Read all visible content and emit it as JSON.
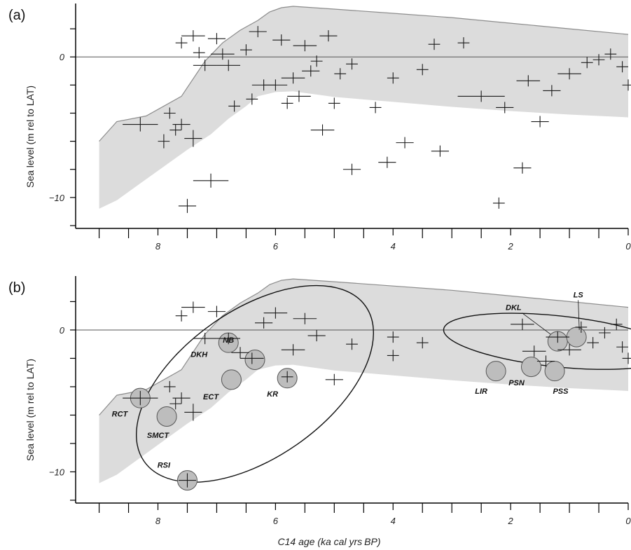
{
  "figure": {
    "panel_a_label": "(a)",
    "panel_b_label": "(b)",
    "xlabel_main": "C14 age (ka cal yrs",
    "xlabel_unit": "BP",
    "xlabel_close": ")",
    "ylabel": "Sea level (m rel to LAT)"
  },
  "colors": {
    "envelope": "#dcdcdc",
    "envelope_edge": "#8c8c8c",
    "marker": "#1a1a1a",
    "site_fill": "#bdbdbd"
  },
  "chart_data": [
    {
      "panel": "(a)",
      "type": "scatter",
      "xlabel": "",
      "ylabel": "Sea level (m rel to LAT)",
      "x_reversed": true,
      "xlim": [
        9.4,
        0
      ],
      "ylim": [
        -12.2,
        3.8
      ],
      "x_ticks": [
        8,
        6,
        4,
        2,
        0
      ],
      "x_tick_labels": [
        "8",
        "6",
        "4",
        "2",
        "0"
      ],
      "y_ticks": [
        0,
        -10
      ],
      "y_tick_labels": [
        "0",
        "−10"
      ],
      "envelope_upper": [
        [
          9.0,
          -6.0
        ],
        [
          8.7,
          -4.6
        ],
        [
          8.2,
          -4.2
        ],
        [
          7.6,
          -2.8
        ],
        [
          7.2,
          -0.3
        ],
        [
          6.9,
          1.0
        ],
        [
          6.6,
          1.9
        ],
        [
          6.3,
          2.6
        ],
        [
          6.1,
          3.2
        ],
        [
          5.9,
          3.5
        ],
        [
          5.7,
          3.6
        ],
        [
          5.0,
          3.4
        ],
        [
          4.0,
          3.1
        ],
        [
          3.0,
          2.8
        ],
        [
          2.0,
          2.4
        ],
        [
          1.0,
          2.0
        ],
        [
          0.0,
          1.6
        ]
      ],
      "envelope_lower": [
        [
          0.0,
          -4.3
        ],
        [
          1.0,
          -4.1
        ],
        [
          2.0,
          -3.85
        ],
        [
          3.0,
          -3.55
        ],
        [
          4.0,
          -3.2
        ],
        [
          5.0,
          -2.85
        ],
        [
          5.7,
          -2.45
        ],
        [
          6.0,
          -2.5
        ],
        [
          6.3,
          -2.8
        ],
        [
          6.5,
          -3.5
        ],
        [
          6.8,
          -4.4
        ],
        [
          7.1,
          -5.5
        ],
        [
          7.5,
          -6.6
        ],
        [
          7.9,
          -7.8
        ],
        [
          8.3,
          -9.0
        ],
        [
          8.7,
          -10.2
        ],
        [
          9.0,
          -10.8
        ]
      ],
      "zero_line": 0,
      "points": [
        [
          8.3,
          -4.8,
          0.3,
          0.5
        ],
        [
          7.9,
          -6.0,
          0.1,
          0.5
        ],
        [
          7.8,
          -4.0,
          0.1,
          0.4
        ],
        [
          7.7,
          -5.2,
          0.1,
          0.4
        ],
        [
          7.6,
          -4.8,
          0.15,
          0.4
        ],
        [
          7.5,
          -10.6,
          0.15,
          0.5
        ],
        [
          7.4,
          -5.8,
          0.15,
          0.6
        ],
        [
          7.1,
          -8.8,
          0.3,
          0.5
        ],
        [
          7.6,
          1.0,
          0.1,
          0.4
        ],
        [
          7.4,
          1.5,
          0.2,
          0.4
        ],
        [
          7.3,
          0.3,
          0.1,
          0.4
        ],
        [
          7.2,
          -0.6,
          0.2,
          0.4
        ],
        [
          7.0,
          1.3,
          0.15,
          0.4
        ],
        [
          6.9,
          0.2,
          0.2,
          0.4
        ],
        [
          6.8,
          -0.6,
          0.2,
          0.4
        ],
        [
          6.7,
          -3.5,
          0.1,
          0.4
        ],
        [
          6.5,
          0.5,
          0.1,
          0.4
        ],
        [
          6.4,
          -3.0,
          0.1,
          0.4
        ],
        [
          6.3,
          1.8,
          0.15,
          0.4
        ],
        [
          6.2,
          -2.0,
          0.2,
          0.4
        ],
        [
          6.0,
          -2.0,
          0.2,
          0.4
        ],
        [
          5.9,
          1.2,
          0.15,
          0.4
        ],
        [
          5.8,
          -3.3,
          0.1,
          0.4
        ],
        [
          5.7,
          -1.5,
          0.2,
          0.4
        ],
        [
          5.6,
          -2.8,
          0.2,
          0.4
        ],
        [
          5.5,
          0.8,
          0.2,
          0.4
        ],
        [
          5.4,
          -1.0,
          0.15,
          0.4
        ],
        [
          5.3,
          -0.3,
          0.1,
          0.4
        ],
        [
          5.2,
          -5.2,
          0.2,
          0.4
        ],
        [
          5.1,
          1.5,
          0.15,
          0.4
        ],
        [
          5.0,
          -3.3,
          0.1,
          0.4
        ],
        [
          4.9,
          -1.2,
          0.1,
          0.4
        ],
        [
          4.7,
          -8.0,
          0.15,
          0.4
        ],
        [
          4.7,
          -0.5,
          0.1,
          0.4
        ],
        [
          4.3,
          -3.6,
          0.1,
          0.4
        ],
        [
          4.1,
          -7.5,
          0.15,
          0.4
        ],
        [
          4.0,
          -1.5,
          0.1,
          0.4
        ],
        [
          3.8,
          -6.1,
          0.15,
          0.4
        ],
        [
          3.5,
          -0.9,
          0.1,
          0.4
        ],
        [
          3.3,
          0.9,
          0.1,
          0.4
        ],
        [
          3.2,
          -6.7,
          0.15,
          0.4
        ],
        [
          2.8,
          1.0,
          0.1,
          0.4
        ],
        [
          2.5,
          -2.8,
          0.4,
          0.4
        ],
        [
          2.2,
          -10.4,
          0.1,
          0.4
        ],
        [
          2.1,
          -3.6,
          0.15,
          0.4
        ],
        [
          1.8,
          -7.9,
          0.15,
          0.4
        ],
        [
          1.5,
          -4.6,
          0.15,
          0.4
        ],
        [
          1.7,
          -1.7,
          0.2,
          0.4
        ],
        [
          1.3,
          -2.4,
          0.15,
          0.4
        ],
        [
          1.0,
          -1.2,
          0.2,
          0.4
        ],
        [
          0.7,
          -0.4,
          0.1,
          0.4
        ],
        [
          0.5,
          -0.2,
          0.1,
          0.4
        ],
        [
          0.3,
          0.2,
          0.1,
          0.4
        ],
        [
          0.1,
          -0.7,
          0.1,
          0.4
        ],
        [
          0.0,
          -2.0,
          0.1,
          0.4
        ]
      ],
      "extra_points_note": ""
    },
    {
      "panel": "(b)",
      "type": "scatter",
      "xlabel": "C14 age (ka cal yrs BP)",
      "ylabel": "Sea level (m rel to LAT)",
      "x_reversed": true,
      "xlim": [
        9.4,
        0
      ],
      "ylim": [
        -12.2,
        3.8
      ],
      "x_ticks": [
        8,
        6,
        4,
        2,
        0
      ],
      "x_tick_labels": [
        "8",
        "6",
        "4",
        "2",
        "0"
      ],
      "y_ticks": [
        0,
        -10
      ],
      "y_tick_labels": [
        "0",
        "−10"
      ],
      "zero_line": 0,
      "points": [
        [
          8.3,
          -4.8,
          0.3,
          0.5
        ],
        [
          7.8,
          -4.0,
          0.1,
          0.4
        ],
        [
          7.7,
          -5.2,
          0.1,
          0.4
        ],
        [
          7.6,
          -4.8,
          0.15,
          0.4
        ],
        [
          7.5,
          -10.6,
          0.15,
          0.5
        ],
        [
          7.4,
          -5.8,
          0.15,
          0.6
        ],
        [
          7.6,
          1.0,
          0.1,
          0.4
        ],
        [
          7.4,
          1.6,
          0.2,
          0.4
        ],
        [
          7.2,
          -0.6,
          0.2,
          0.4
        ],
        [
          7.0,
          1.3,
          0.15,
          0.4
        ],
        [
          6.8,
          -0.6,
          0.2,
          0.4
        ],
        [
          6.6,
          -1.6,
          0.15,
          0.4
        ],
        [
          6.4,
          -2.0,
          0.2,
          0.4
        ],
        [
          6.2,
          0.5,
          0.15,
          0.4
        ],
        [
          6.0,
          1.2,
          0.2,
          0.4
        ],
        [
          5.8,
          -3.3,
          0.1,
          0.4
        ],
        [
          5.7,
          -1.4,
          0.2,
          0.4
        ],
        [
          5.5,
          0.8,
          0.2,
          0.4
        ],
        [
          5.3,
          -0.4,
          0.15,
          0.4
        ],
        [
          5.0,
          -3.5,
          0.15,
          0.4
        ],
        [
          4.7,
          -1.0,
          0.1,
          0.4
        ],
        [
          4.0,
          -0.5,
          0.1,
          0.4
        ],
        [
          4.0,
          -1.8,
          0.1,
          0.4
        ],
        [
          3.5,
          -0.9,
          0.1,
          0.4
        ],
        [
          1.8,
          0.4,
          0.2,
          0.4
        ],
        [
          1.6,
          -1.5,
          0.2,
          0.4
        ],
        [
          1.4,
          -2.2,
          0.15,
          0.4
        ],
        [
          1.2,
          -0.5,
          0.2,
          0.4
        ],
        [
          1.0,
          -1.4,
          0.2,
          0.4
        ],
        [
          0.8,
          0.2,
          0.1,
          0.4
        ],
        [
          0.6,
          -0.9,
          0.1,
          0.4
        ],
        [
          0.4,
          -0.2,
          0.1,
          0.4
        ],
        [
          0.2,
          0.4,
          0.1,
          0.4
        ],
        [
          0.1,
          -1.2,
          0.1,
          0.4
        ],
        [
          0.0,
          -2.0,
          0.1,
          0.4
        ]
      ],
      "sites": [
        {
          "name": "RCT",
          "x": 8.3,
          "y": -4.8,
          "label_x": 8.65,
          "label_y": -6.1
        },
        {
          "name": "SMCT",
          "x": 7.85,
          "y": -6.1,
          "label_x": 8.0,
          "label_y": -7.6
        },
        {
          "name": "RSI",
          "x": 7.5,
          "y": -10.6,
          "label_x": 7.9,
          "label_y": -9.7
        },
        {
          "name": "DKH",
          "x": 6.8,
          "y": -0.9,
          "label_x": 7.3,
          "label_y": -1.9
        },
        {
          "name": "ECT",
          "x": 6.75,
          "y": -3.5,
          "label_x": 7.1,
          "label_y": -4.9
        },
        {
          "name": "NB",
          "x": 6.35,
          "y": -2.1,
          "label_x": 6.8,
          "label_y": -0.9
        },
        {
          "name": "KR",
          "x": 5.8,
          "y": -3.4,
          "label_x": 6.05,
          "label_y": -4.7
        },
        {
          "name": "LIR",
          "x": 2.25,
          "y": -2.9,
          "label_x": 2.5,
          "label_y": -4.5
        },
        {
          "name": "PSN",
          "x": 1.65,
          "y": -2.6,
          "label_x": 1.9,
          "label_y": -3.9
        },
        {
          "name": "PSS",
          "x": 1.25,
          "y": -2.9,
          "label_x": 1.15,
          "label_y": -4.5
        },
        {
          "name": "DKL",
          "x": 1.2,
          "y": -0.8,
          "label_x": 1.95,
          "label_y": 1.4
        },
        {
          "name": "LS",
          "x": 0.88,
          "y": -0.5,
          "label_x": 0.85,
          "label_y": 2.3
        }
      ],
      "ellipses": [
        {
          "name": "early-holocene-cluster",
          "cx": 6.35,
          "cy": -3.8,
          "rx": 2.3,
          "ry": 5.2,
          "angle": -35
        },
        {
          "name": "late-holocene-cluster",
          "cx": 1.2,
          "cy": -0.8,
          "rx": 1.95,
          "ry": 1.8,
          "angle": 6
        }
      ]
    }
  ]
}
